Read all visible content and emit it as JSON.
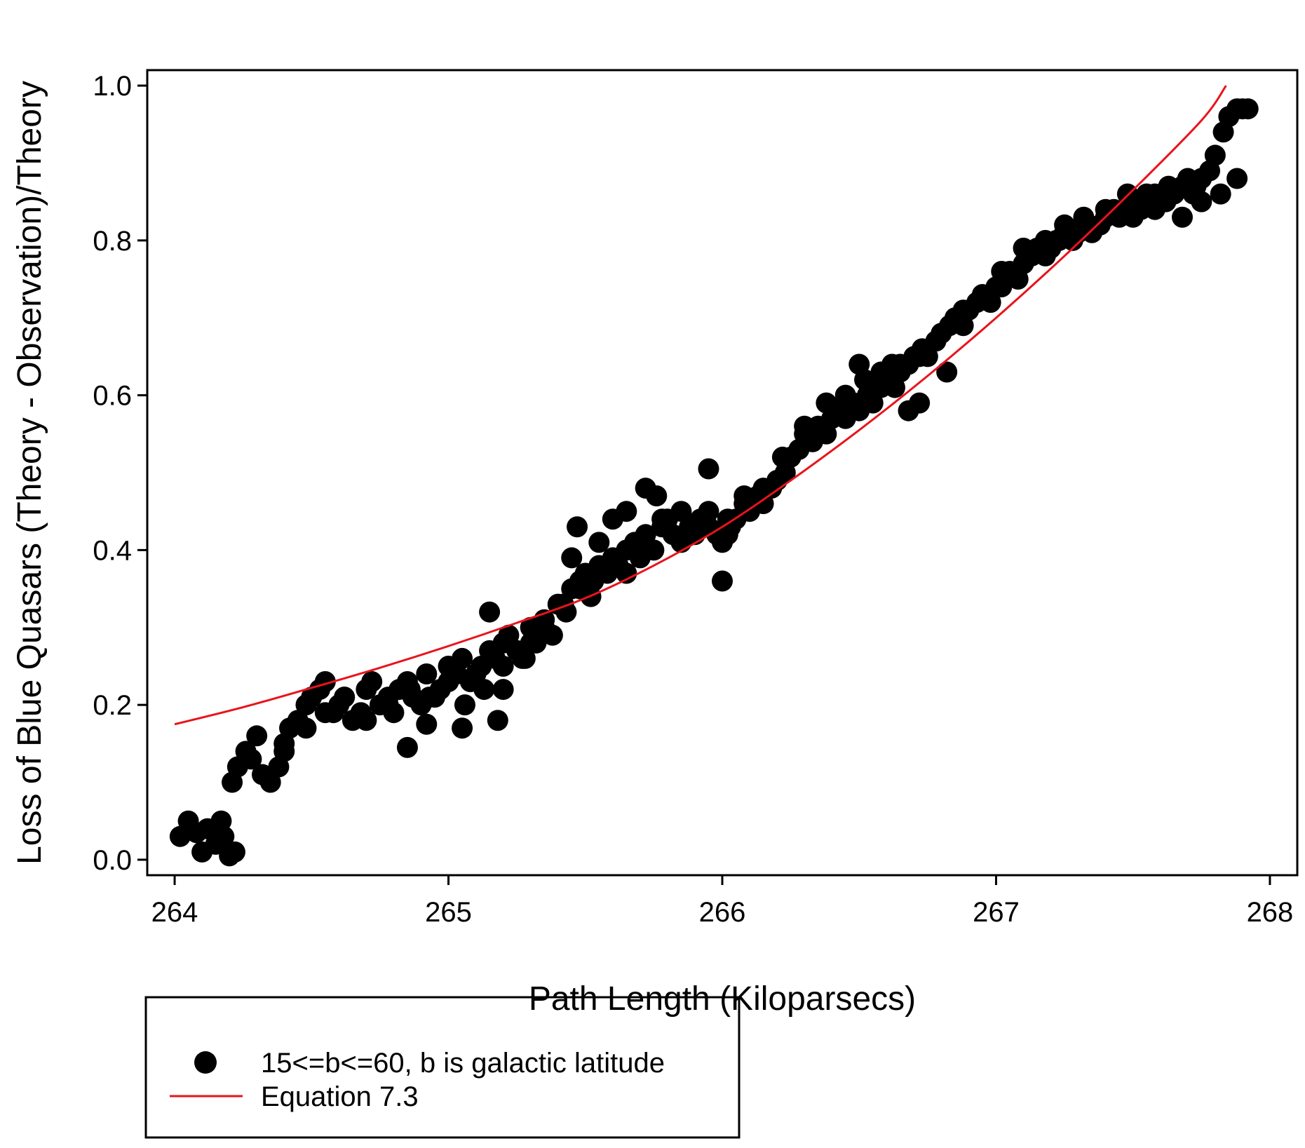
{
  "chart_data": {
    "type": "scatter",
    "title": "",
    "xlabel": "Path Length (Kiloparsecs)",
    "ylabel": "Loss of Blue Quasars (Theory - Observation)/Theory",
    "xlim": [
      263.9,
      268.1
    ],
    "ylim": [
      -0.02,
      1.02
    ],
    "x_ticks": [
      "264",
      "265",
      "266",
      "267",
      "268"
    ],
    "y_ticks": [
      "0.0",
      "0.2",
      "0.4",
      "0.6",
      "0.8",
      "1.0"
    ],
    "grid": false,
    "legend_position": "bottom-left, below plot",
    "series": [
      {
        "name": "15<=b<=60, b is galactic latitude",
        "kind": "scatter",
        "color": "#000000",
        "x": [
          264.02,
          264.05,
          264.08,
          264.1,
          264.12,
          264.15,
          264.17,
          264.2,
          264.22,
          264.18,
          264.21,
          264.23,
          264.26,
          264.28,
          264.3,
          264.32,
          264.35,
          264.38,
          264.4,
          264.42,
          264.45,
          264.48,
          264.5,
          264.53,
          264.55,
          264.58,
          264.6,
          264.62,
          264.65,
          264.68,
          264.7,
          264.72,
          264.75,
          264.78,
          264.8,
          264.82,
          264.85,
          264.87,
          264.9,
          264.92,
          264.95,
          264.97,
          265.0,
          265.03,
          265.05,
          265.08,
          265.1,
          265.12,
          265.15,
          265.17,
          265.2,
          265.22,
          265.25,
          265.28,
          265.3,
          265.32,
          265.35,
          265.38,
          265.4,
          265.43,
          265.45,
          265.48,
          265.5,
          265.53,
          265.55,
          265.58,
          265.6,
          265.62,
          265.65,
          265.68,
          265.7,
          265.72,
          265.75,
          265.78,
          265.8,
          265.82,
          265.85,
          265.88,
          265.9,
          265.92,
          265.95,
          265.98,
          266.0,
          266.03,
          266.05,
          266.08,
          266.1,
          266.13,
          266.15,
          266.18,
          266.2,
          266.23,
          266.25,
          266.28,
          266.3,
          266.33,
          266.35,
          266.38,
          266.4,
          266.43,
          266.45,
          266.48,
          266.5,
          266.53,
          266.55,
          266.58,
          266.6,
          266.63,
          266.65,
          266.68,
          266.7,
          266.73,
          266.75,
          266.78,
          266.8,
          266.83,
          266.85,
          266.88,
          266.9,
          266.93,
          266.95,
          266.98,
          267.0,
          267.03,
          267.05,
          267.08,
          267.1,
          267.13,
          267.15,
          267.18,
          267.2,
          267.23,
          267.25,
          267.28,
          267.3,
          267.33,
          267.35,
          267.38,
          267.4,
          267.43,
          267.45,
          267.48,
          267.5,
          267.53,
          267.55,
          267.58,
          267.6,
          267.63,
          267.65,
          267.68,
          267.7,
          267.73,
          267.75,
          267.78,
          267.8,
          267.83,
          267.85,
          267.88,
          267.9,
          267.92,
          264.4,
          264.48,
          264.55,
          264.62,
          264.7,
          264.78,
          264.86,
          264.93,
          265.0,
          265.06,
          265.13,
          265.2,
          265.27,
          265.35,
          265.42,
          265.48,
          265.52,
          265.58,
          265.65,
          265.72,
          265.78,
          265.85,
          265.95,
          266.02,
          266.08,
          266.15,
          266.22,
          266.3,
          266.38,
          266.45,
          266.52,
          266.58,
          266.65,
          266.72,
          266.8,
          266.88,
          266.95,
          267.02,
          267.1,
          267.18,
          267.25,
          267.32,
          267.4,
          267.48,
          267.55,
          267.62,
          267.7,
          267.75,
          267.82,
          267.88,
          264.85,
          264.92,
          265.05,
          265.18,
          265.2,
          265.15,
          265.25,
          265.3,
          265.45,
          265.47,
          265.55,
          265.6,
          265.65,
          265.72,
          265.76,
          265.95,
          266.0,
          266.02,
          266.5,
          266.62,
          266.68,
          266.72,
          266.82,
          267.02,
          267.22,
          267.5,
          267.58,
          267.68,
          267.72
        ],
        "y": [
          0.03,
          0.05,
          0.035,
          0.01,
          0.04,
          0.02,
          0.05,
          0.005,
          0.01,
          0.03,
          0.1,
          0.12,
          0.14,
          0.13,
          0.16,
          0.11,
          0.1,
          0.12,
          0.14,
          0.17,
          0.18,
          0.2,
          0.21,
          0.22,
          0.23,
          0.19,
          0.2,
          0.21,
          0.18,
          0.19,
          0.22,
          0.23,
          0.2,
          0.21,
          0.19,
          0.22,
          0.23,
          0.21,
          0.2,
          0.24,
          0.21,
          0.22,
          0.25,
          0.24,
          0.26,
          0.23,
          0.24,
          0.25,
          0.27,
          0.26,
          0.28,
          0.29,
          0.27,
          0.26,
          0.3,
          0.28,
          0.31,
          0.29,
          0.33,
          0.32,
          0.35,
          0.36,
          0.37,
          0.36,
          0.38,
          0.37,
          0.39,
          0.38,
          0.4,
          0.41,
          0.39,
          0.42,
          0.4,
          0.43,
          0.44,
          0.42,
          0.41,
          0.43,
          0.42,
          0.44,
          0.43,
          0.42,
          0.41,
          0.43,
          0.44,
          0.46,
          0.45,
          0.47,
          0.46,
          0.48,
          0.49,
          0.5,
          0.52,
          0.53,
          0.55,
          0.54,
          0.56,
          0.55,
          0.57,
          0.58,
          0.57,
          0.59,
          0.58,
          0.6,
          0.59,
          0.61,
          0.62,
          0.61,
          0.63,
          0.64,
          0.65,
          0.66,
          0.65,
          0.67,
          0.68,
          0.69,
          0.7,
          0.69,
          0.71,
          0.72,
          0.73,
          0.72,
          0.74,
          0.75,
          0.76,
          0.75,
          0.77,
          0.78,
          0.79,
          0.78,
          0.79,
          0.8,
          0.81,
          0.8,
          0.81,
          0.82,
          0.81,
          0.82,
          0.83,
          0.84,
          0.83,
          0.84,
          0.85,
          0.84,
          0.85,
          0.86,
          0.85,
          0.87,
          0.86,
          0.87,
          0.88,
          0.87,
          0.88,
          0.89,
          0.91,
          0.94,
          0.96,
          0.97,
          0.97,
          0.97,
          0.15,
          0.17,
          0.19,
          0.21,
          0.18,
          0.2,
          0.22,
          0.21,
          0.23,
          0.2,
          0.22,
          0.25,
          0.26,
          0.3,
          0.33,
          0.35,
          0.34,
          0.38,
          0.37,
          0.4,
          0.44,
          0.45,
          0.45,
          0.44,
          0.47,
          0.48,
          0.52,
          0.56,
          0.59,
          0.6,
          0.62,
          0.63,
          0.64,
          0.65,
          0.68,
          0.71,
          0.73,
          0.76,
          0.79,
          0.8,
          0.82,
          0.83,
          0.84,
          0.86,
          0.86,
          0.85,
          0.87,
          0.85,
          0.86,
          0.88,
          0.145,
          0.175,
          0.17,
          0.18,
          0.22,
          0.32,
          0.27,
          0.28,
          0.39,
          0.43,
          0.41,
          0.44,
          0.45,
          0.48,
          0.47,
          0.505,
          0.36,
          0.42,
          0.64,
          0.64,
          0.58,
          0.59,
          0.63,
          0.74,
          0.8,
          0.83,
          0.84,
          0.83,
          0.86
        ]
      },
      {
        "name": "Equation 7.3",
        "kind": "line",
        "color": "#e8141b",
        "x": [
          264.0,
          264.25,
          264.5,
          264.75,
          265.0,
          265.25,
          265.5,
          265.75,
          266.0,
          266.25,
          266.5,
          266.75,
          267.0,
          267.25,
          267.5,
          267.75,
          267.84
        ],
        "y": [
          0.175,
          0.197,
          0.222,
          0.248,
          0.276,
          0.306,
          0.338,
          0.38,
          0.43,
          0.49,
          0.555,
          0.625,
          0.7,
          0.78,
          0.865,
          0.955,
          1.0
        ]
      }
    ]
  }
}
